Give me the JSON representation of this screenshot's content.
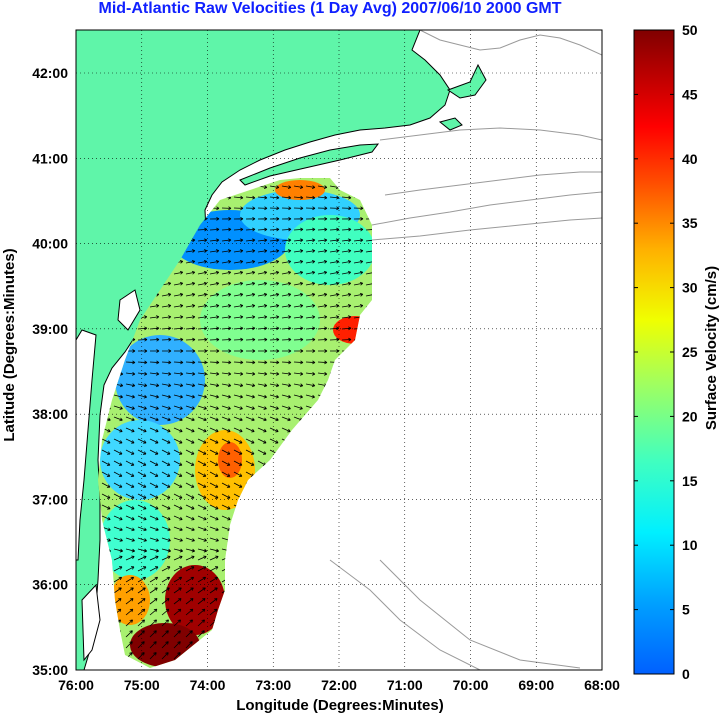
{
  "title": "Mid-Atlantic Raw Velocities (1 Day Avg) 2007/06/10 2000 GMT",
  "map": {
    "xlabel": "Longitude (Degrees:Minutes)",
    "ylabel": "Latitude (Degrees:Minutes)",
    "x_ticks": [
      "76:00",
      "75:00",
      "74:00",
      "73:00",
      "72:00",
      "71:00",
      "70:00",
      "69:00",
      "68:00"
    ],
    "y_ticks": [
      "42:00",
      "41:00",
      "40:00",
      "39:00",
      "38:00",
      "37:00",
      "36:00",
      "35:00"
    ],
    "land_color": "#5ff5a9",
    "coast_color": "#000000",
    "bathymetry_color": "#9a9a9a",
    "grid_style": "dotted",
    "vector_color": "#000000"
  },
  "colorbar": {
    "label": "Surface Velocity (cm/s)",
    "ticks": [
      "0",
      "5",
      "10",
      "15",
      "20",
      "25",
      "30",
      "35",
      "40",
      "45",
      "50"
    ],
    "range": [
      0,
      50
    ],
    "colormap": "jet"
  }
}
